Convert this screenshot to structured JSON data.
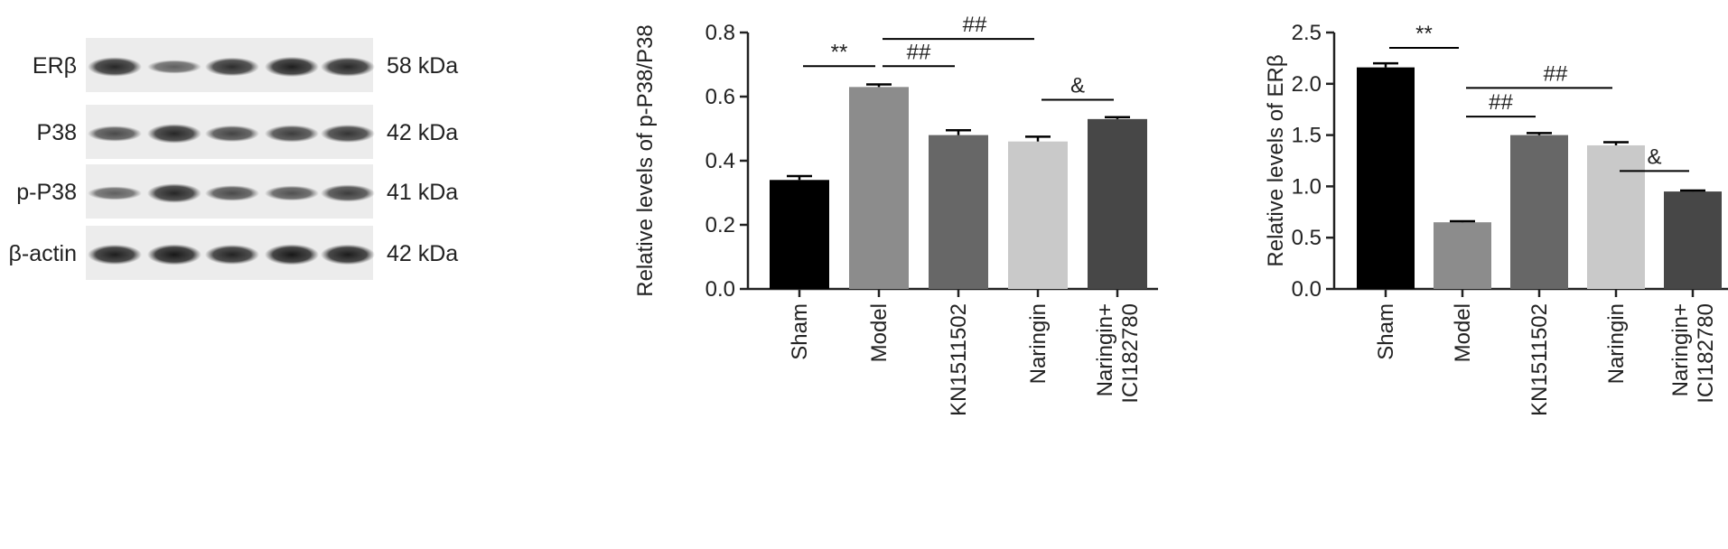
{
  "blot": {
    "rows": [
      {
        "label": "ERβ",
        "size": "58 kDa",
        "intensities": [
          0.85,
          0.45,
          0.8,
          0.9,
          0.85
        ]
      },
      {
        "label": "P38",
        "size": "42 kDa",
        "intensities": [
          0.6,
          0.85,
          0.65,
          0.7,
          0.75
        ]
      },
      {
        "label": "p-P38",
        "size": "41 kDa",
        "intensities": [
          0.45,
          0.85,
          0.6,
          0.55,
          0.7
        ]
      },
      {
        "label": "β-actin",
        "size": "42 kDa",
        "intensities": [
          0.9,
          0.95,
          0.88,
          0.95,
          0.92
        ]
      }
    ]
  },
  "chart_data": [
    {
      "type": "bar",
      "categories": [
        "Sham",
        "Model",
        "KN1511502",
        "Naringin",
        "Naringin+\nICI182780"
      ],
      "values": [
        0.34,
        0.63,
        0.48,
        0.46,
        0.53
      ],
      "errors": [
        0.012,
        0.008,
        0.015,
        0.015,
        0.006
      ],
      "colors": [
        "#000000",
        "#8c8c8c",
        "#676767",
        "#c9c9c9",
        "#474747"
      ],
      "ylabel": "Relative levels of p-P38/P38",
      "ylim": [
        0,
        0.8
      ],
      "yticks": [
        "0.0",
        "0.2",
        "0.4",
        "0.6",
        "0.8"
      ],
      "annotations": [
        {
          "text": "**",
          "from": 0,
          "to": 1,
          "y": 0.695
        },
        {
          "text": "##",
          "from": 1,
          "to": 2,
          "y": 0.695
        },
        {
          "text": "##",
          "from": 1,
          "to": 3,
          "y": 0.78
        },
        {
          "text": "&",
          "from": 3,
          "to": 4,
          "y": 0.59
        }
      ]
    },
    {
      "type": "bar",
      "categories": [
        "Sham",
        "Model",
        "KN1511502",
        "Naringin",
        "Naringin+\nICI182780"
      ],
      "values": [
        2.16,
        0.65,
        1.5,
        1.4,
        0.95
      ],
      "errors": [
        0.04,
        0.01,
        0.02,
        0.03,
        0.01
      ],
      "colors": [
        "#000000",
        "#8c8c8c",
        "#676767",
        "#c9c9c9",
        "#474747"
      ],
      "ylabel": "Relative levels of ERβ",
      "ylim": [
        0,
        2.5
      ],
      "yticks": [
        "0.0",
        "0.5",
        "1.0",
        "1.5",
        "2.0",
        "2.5"
      ],
      "annotations": [
        {
          "text": "**",
          "from": 0,
          "to": 1,
          "y": 2.35
        },
        {
          "text": "##",
          "from": 1,
          "to": 2,
          "y": 1.68
        },
        {
          "text": "##",
          "from": 1,
          "to": 3,
          "y": 1.96
        },
        {
          "text": "&",
          "from": 3,
          "to": 4,
          "y": 1.15
        }
      ]
    }
  ]
}
